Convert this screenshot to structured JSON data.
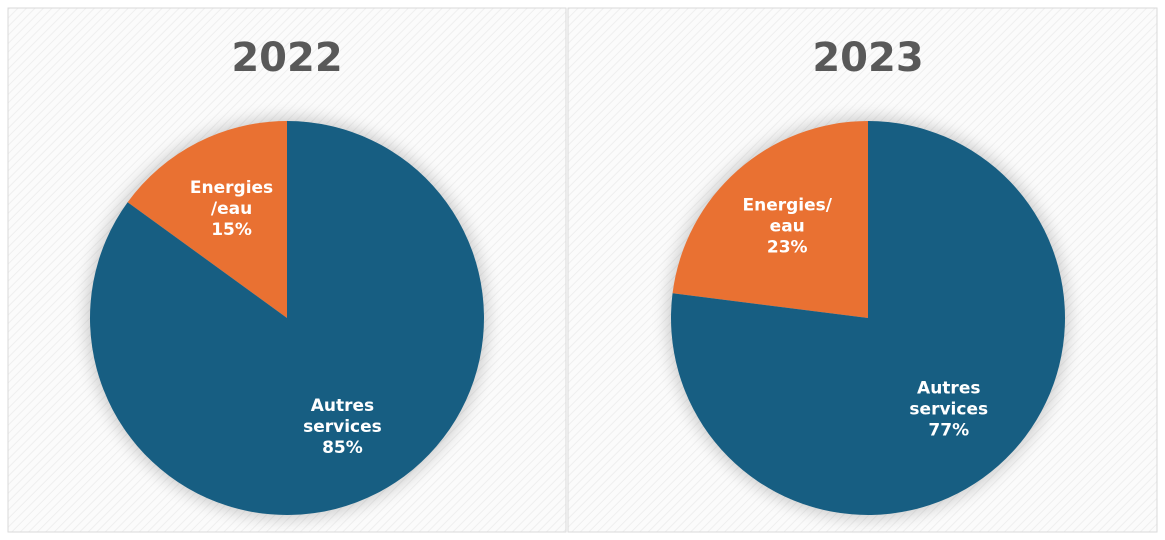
{
  "chart_data": [
    {
      "type": "pie",
      "title": "2022",
      "categories": [
        "Energies/eau",
        "Autres services"
      ],
      "values": [
        15,
        85
      ],
      "value_labels": [
        "15%",
        "85%"
      ],
      "colors": [
        "#e97132",
        "#175e82"
      ]
    },
    {
      "type": "pie",
      "title": "2023",
      "categories": [
        "Energies/eau",
        "Autres services"
      ],
      "values": [
        23,
        77
      ],
      "value_labels": [
        "23%",
        "77%"
      ],
      "colors": [
        "#e97132",
        "#175e82"
      ]
    }
  ]
}
